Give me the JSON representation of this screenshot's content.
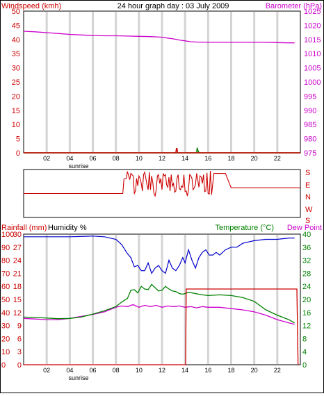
{
  "colors": {
    "grid": "#d4d4d4",
    "wind": "#cc0000",
    "gust": "#008000",
    "barometer": "#cc00cc",
    "direction": "#cc0000",
    "rainfall": "#cc0000",
    "humidity": "#0000cc",
    "temperature": "#008000",
    "dewpoint": "#cc00cc",
    "title": "#000000"
  },
  "header": {
    "left_label": "Windspeed (kmh)",
    "title": "24 hour graph day : 03 July 2009",
    "right_label": "Barometer (hPa)"
  },
  "lower_header": {
    "rain_label": "Rainfall (mm)",
    "humidity_label": "Humidity %",
    "temp_label": "Temperature (°C)",
    "dew_label": "Dew Point"
  },
  "x_ticks": [
    "02",
    "04",
    "06",
    "08",
    "10",
    "12",
    "14",
    "16",
    "18",
    "20",
    "22"
  ],
  "sunrise_label": "sunrise",
  "chart_data": [
    {
      "type": "line",
      "id": "wind-baro",
      "x_unit": "hour",
      "xlim": [
        0,
        24
      ],
      "left_axis": {
        "label": "Windspeed (kmh)",
        "ticks": [
          0,
          5,
          10,
          15,
          20,
          25,
          30,
          35,
          40,
          45,
          50
        ],
        "ylim": [
          0,
          50
        ]
      },
      "right_axis": {
        "label": "Barometer (hPa)",
        "ticks": [
          975,
          980,
          985,
          990,
          995,
          1000,
          1005,
          1010,
          1015,
          1020,
          1025
        ],
        "ylim": [
          975,
          1025
        ]
      },
      "series": [
        {
          "name": "Barometer (hPa)",
          "axis": "right",
          "x": [
            0,
            1,
            2,
            3,
            4,
            5,
            6,
            7,
            8,
            9,
            10,
            11,
            12,
            12.5,
            13,
            13.5,
            14,
            14.5,
            15,
            16,
            17,
            18,
            19,
            20,
            21,
            22,
            23,
            23.5
          ],
          "y": [
            1017.9,
            1017.7,
            1017.4,
            1017.1,
            1016.8,
            1016.6,
            1016.4,
            1016.3,
            1016.3,
            1016.2,
            1016.1,
            1016.0,
            1015.8,
            1015.5,
            1015.2,
            1014.8,
            1014.5,
            1014.2,
            1014.1,
            1014.0,
            1014.0,
            1014.0,
            1014.0,
            1014.0,
            1014.0,
            1013.9,
            1013.8,
            1013.8
          ]
        },
        {
          "name": "Windspeed",
          "axis": "left",
          "x": [
            0,
            13.2,
            13.25,
            13.3,
            13.35,
            24
          ],
          "y": [
            0,
            0,
            1.5,
            1.5,
            0,
            0
          ]
        },
        {
          "name": "Gust",
          "axis": "left",
          "x": [
            0,
            15.0,
            15.05,
            15.1,
            15.15,
            15.2,
            24
          ],
          "y": [
            0,
            0,
            1.8,
            1.0,
            0.6,
            0,
            0
          ]
        }
      ]
    },
    {
      "type": "line",
      "id": "wind-direction",
      "x_unit": "hour",
      "xlim": [
        0,
        24
      ],
      "axis": {
        "ticks": [
          "S",
          "E",
          "N",
          "W",
          "S"
        ],
        "ylim": [
          0,
          360
        ],
        "direction": "top-down"
      },
      "series": [
        {
          "name": "Wind direction",
          "x": [
            0,
            8.6,
            8.7,
            8.9,
            9.0,
            9.2,
            9.3,
            9.5,
            9.6,
            9.7,
            9.8,
            9.9,
            10.0,
            10.1,
            10.2,
            10.3,
            10.4,
            10.5,
            10.6,
            10.7,
            10.8,
            10.9,
            11.0,
            11.1,
            11.2,
            11.3,
            11.4,
            11.5,
            11.6,
            11.7,
            11.8,
            11.9,
            12.0,
            12.1,
            12.2,
            12.3,
            12.4,
            12.5,
            12.6,
            12.7,
            12.8,
            12.9,
            13.0,
            13.1,
            13.2,
            13.3,
            13.4,
            13.5,
            13.6,
            13.7,
            13.8,
            13.9,
            14.0,
            14.1,
            14.2,
            14.3,
            14.4,
            14.5,
            14.6,
            14.7,
            14.8,
            14.9,
            15.0,
            15.1,
            15.2,
            15.3,
            15.4,
            15.5,
            15.6,
            15.7,
            15.8,
            15.9,
            16.0,
            16.1,
            16.2,
            16.3,
            16.5,
            17.0,
            17.5,
            18.0,
            18.5,
            24
          ],
          "y": [
            180,
            180,
            295,
            300,
            355,
            290,
            340,
            320,
            180,
            200,
            300,
            240,
            320,
            300,
            260,
            200,
            330,
            350,
            300,
            250,
            210,
            350,
            210,
            320,
            270,
            180,
            160,
            210,
            320,
            330,
            260,
            300,
            210,
            340,
            320,
            330,
            250,
            230,
            310,
            200,
            330,
            240,
            260,
            190,
            200,
            300,
            330,
            220,
            210,
            240,
            230,
            330,
            195,
            200,
            160,
            210,
            330,
            320,
            300,
            210,
            225,
            250,
            340,
            290,
            230,
            320,
            310,
            260,
            330,
            195,
            200,
            345,
            180,
            175,
            360,
            170,
            340,
            340,
            340,
            225,
            225,
            225
          ]
        }
      ]
    },
    {
      "type": "line",
      "id": "rain-humidity-temp",
      "x_unit": "hour",
      "xlim": [
        0,
        24
      ],
      "axes": {
        "rainfall": {
          "label": "Rainfall (mm)",
          "ticks": [
            0,
            10,
            20,
            30,
            40,
            50,
            60,
            70,
            80,
            90,
            100
          ],
          "ylim": [
            0,
            100
          ]
        },
        "humidity": {
          "label": "Humidity %",
          "ticks": [
            0,
            3,
            6,
            9,
            12,
            15,
            18,
            21,
            24,
            27,
            30
          ],
          "ylim": [
            0,
            30
          ]
        },
        "temperature": {
          "label": "Temperature (°C)",
          "ticks": [
            0,
            4,
            8,
            12,
            16,
            20,
            24,
            28,
            32,
            36,
            40
          ],
          "ylim": [
            0,
            40
          ]
        },
        "dewpoint": {
          "label": "Dew Point",
          "ticks": [
            0,
            4,
            8,
            12,
            16,
            20,
            24,
            28,
            32,
            36,
            40
          ],
          "ylim": [
            0,
            40
          ]
        }
      },
      "series": [
        {
          "name": "Humidity %",
          "axis": "rainfall",
          "x": [
            0,
            2,
            4,
            6,
            7,
            8,
            8.5,
            9.0,
            9.3,
            9.6,
            9.9,
            10.2,
            10.5,
            10.8,
            11.1,
            11.4,
            11.7,
            12.0,
            12.3,
            12.6,
            12.9,
            13.2,
            13.5,
            13.8,
            14.0,
            14.3,
            14.6,
            14.9,
            15.2,
            15.5,
            15.8,
            16.1,
            16.4,
            16.7,
            17.0,
            17.5,
            18.0,
            18.5,
            19,
            20,
            21,
            22,
            23,
            23.5
          ],
          "y": [
            98,
            98,
            98,
            98.5,
            98,
            96,
            92,
            85,
            82,
            75,
            76,
            72,
            72,
            78,
            70,
            74,
            76,
            72,
            70,
            80,
            74,
            72,
            76,
            82,
            78,
            88,
            80,
            74,
            82,
            86,
            88,
            84,
            84,
            86,
            84,
            88,
            90,
            90,
            93,
            95,
            96,
            96,
            97,
            97
          ]
        },
        {
          "name": "Rainfall (mm)",
          "axis": "rainfall",
          "x": [
            0,
            14.05,
            14.1,
            23.7,
            23.8
          ],
          "y": [
            0,
            0,
            58,
            58,
            0
          ]
        },
        {
          "name": "Temperature (°C)",
          "axis": "temperature",
          "x": [
            0,
            1,
            2,
            3,
            4,
            5,
            6,
            7,
            8,
            8.5,
            9.0,
            9.3,
            9.6,
            9.9,
            10.2,
            10.5,
            10.8,
            11.1,
            11.4,
            11.7,
            12.0,
            12.3,
            12.6,
            12.9,
            13.2,
            13.5,
            13.8,
            14.0,
            14.3,
            14.6,
            14.9,
            15.2,
            15.5,
            16,
            17,
            18,
            19,
            20,
            21,
            22,
            23,
            23.5
          ],
          "y": [
            14.6,
            14.5,
            14.3,
            14.1,
            14.2,
            14.6,
            15.5,
            16.5,
            17.8,
            19.2,
            20.3,
            22.8,
            23.0,
            22.0,
            24.0,
            23.2,
            23.0,
            24.6,
            23.6,
            22.6,
            22.8,
            24.0,
            23.2,
            22.6,
            22.4,
            21.8,
            21.6,
            21.8,
            22.2,
            22.0,
            21.8,
            21.6,
            21.4,
            21.2,
            21.4,
            21.2,
            20.6,
            19.4,
            16.8,
            15.2,
            13.8,
            12.8
          ]
        },
        {
          "name": "Dew Point",
          "axis": "dewpoint",
          "x": [
            0,
            1,
            2,
            3,
            4,
            5,
            6,
            7,
            8,
            8.5,
            9,
            9.5,
            10,
            10.5,
            11,
            11.5,
            12,
            12.5,
            13,
            13.5,
            14,
            14.5,
            15,
            15.5,
            16,
            17,
            18,
            19,
            20,
            21,
            22,
            23,
            23.5
          ],
          "y": [
            14.2,
            14.0,
            13.8,
            13.8,
            14.2,
            14.8,
            15.4,
            16.2,
            17.6,
            18.0,
            17.8,
            18.4,
            17.6,
            18.2,
            17.8,
            18.2,
            17.6,
            18.0,
            17.8,
            18.0,
            17.6,
            17.8,
            17.4,
            17.8,
            17.6,
            17.6,
            17.2,
            16.8,
            16.2,
            15.2,
            13.8,
            12.8,
            12.4
          ]
        }
      ]
    }
  ]
}
